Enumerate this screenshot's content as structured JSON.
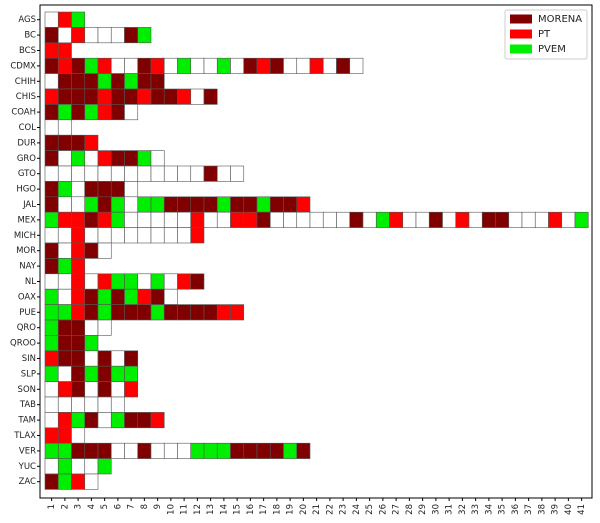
{
  "chart_data": {
    "type": "party-grid",
    "rows": [
      "AGS",
      "BC",
      "BCS",
      "CDMX",
      "CHIH",
      "CHIS",
      "COAH",
      "COL",
      "DUR",
      "GRO",
      "GTO",
      "HGO",
      "JAL",
      "MEX",
      "MICH",
      "MOR",
      "NAY",
      "NL",
      "OAX",
      "PUE",
      "QRO",
      "QROO",
      "SIN",
      "SLP",
      "SON",
      "TAB",
      "TAM",
      "TLAX",
      "VER",
      "YUC",
      "ZAC"
    ],
    "columns": [
      1,
      2,
      3,
      4,
      5,
      6,
      7,
      8,
      9,
      10,
      11,
      12,
      13,
      14,
      15,
      16,
      17,
      18,
      19,
      20,
      21,
      22,
      23,
      24,
      25,
      26,
      27,
      28,
      29,
      30,
      31,
      32,
      33,
      34,
      35,
      36,
      37,
      38,
      39,
      40,
      41
    ],
    "series": [
      {
        "name": "MORENA",
        "color": "#800000"
      },
      {
        "name": "PT",
        "color": "#ff0000"
      },
      {
        "name": "PVEM",
        "color": "#00ee00"
      }
    ],
    "legend": "upper right",
    "cells": [
      [
        null,
        "PT",
        "PVEM"
      ],
      [
        "MORENA",
        null,
        "PT",
        null,
        null,
        null,
        "MORENA",
        "PVEM"
      ],
      [
        "PT",
        "PT"
      ],
      [
        "MORENA",
        "PT",
        "MORENA",
        "PVEM",
        "PT",
        null,
        null,
        "MORENA",
        "PT",
        null,
        "PVEM",
        null,
        null,
        "PVEM",
        null,
        "MORENA",
        "PT",
        "MORENA",
        null,
        null,
        "PT",
        null,
        "MORENA",
        null
      ],
      [
        null,
        "MORENA",
        "MORENA",
        "MORENA",
        "PVEM",
        "MORENA",
        "PVEM",
        "MORENA",
        "MORENA"
      ],
      [
        "PT",
        "MORENA",
        "MORENA",
        "MORENA",
        "PT",
        "MORENA",
        "MORENA",
        "PT",
        "MORENA",
        "MORENA",
        "PT",
        null,
        "MORENA"
      ],
      [
        "MORENA",
        "PVEM",
        "MORENA",
        "PVEM",
        "PT",
        "MORENA",
        null
      ],
      [
        null,
        null
      ],
      [
        "MORENA",
        "MORENA",
        "MORENA",
        "PT"
      ],
      [
        "MORENA",
        null,
        "PVEM",
        null,
        "PT",
        "MORENA",
        "MORENA",
        "PVEM",
        null
      ],
      [
        null,
        null,
        null,
        null,
        null,
        null,
        null,
        null,
        null,
        null,
        null,
        null,
        "MORENA",
        null,
        null
      ],
      [
        "MORENA",
        "PVEM",
        null,
        "MORENA",
        "MORENA",
        "MORENA",
        null
      ],
      [
        "MORENA",
        null,
        null,
        "PVEM",
        "MORENA",
        "PVEM",
        null,
        "PVEM",
        "PVEM",
        "MORENA",
        "MORENA",
        "MORENA",
        "MORENA",
        "PVEM",
        "MORENA",
        "MORENA",
        "PVEM",
        "MORENA",
        "MORENA",
        "PT"
      ],
      [
        "PVEM",
        "PT",
        "PT",
        "MORENA",
        "PT",
        "PVEM",
        null,
        null,
        null,
        null,
        null,
        "PT",
        null,
        null,
        "PT",
        "PT",
        "MORENA",
        null,
        null,
        null,
        null,
        null,
        null,
        "MORENA",
        null,
        "PVEM",
        "PT",
        null,
        null,
        "MORENA",
        null,
        "PT",
        null,
        "MORENA",
        "MORENA",
        null,
        null,
        null,
        "PT",
        null,
        "PVEM"
      ],
      [
        null,
        null,
        "PT",
        null,
        null,
        null,
        null,
        null,
        null,
        null,
        null,
        "PT"
      ],
      [
        "MORENA",
        null,
        "PT",
        "MORENA",
        null
      ],
      [
        "MORENA",
        "PVEM",
        "PT"
      ],
      [
        null,
        null,
        "PT",
        null,
        "PT",
        "PVEM",
        "PVEM",
        null,
        "PVEM",
        null,
        "PT",
        "MORENA"
      ],
      [
        "PVEM",
        null,
        "PT",
        "MORENA",
        "PVEM",
        "MORENA",
        "PVEM",
        "PT",
        "MORENA",
        null
      ],
      [
        "PVEM",
        "PVEM",
        "PT",
        "MORENA",
        "PVEM",
        "MORENA",
        "MORENA",
        "MORENA",
        "PVEM",
        "MORENA",
        "MORENA",
        "MORENA",
        "MORENA",
        "PT",
        "PT"
      ],
      [
        "PVEM",
        "MORENA",
        "MORENA",
        null,
        null
      ],
      [
        "PVEM",
        "MORENA",
        "MORENA",
        "PVEM"
      ],
      [
        "PT",
        "MORENA",
        "MORENA",
        null,
        "MORENA",
        null,
        "MORENA"
      ],
      [
        "PVEM",
        null,
        "MORENA",
        "PVEM",
        "MORENA",
        "PVEM",
        "PVEM"
      ],
      [
        null,
        "PT",
        "MORENA",
        null,
        "MORENA",
        null,
        "PT"
      ],
      [
        null,
        null,
        null,
        null,
        null,
        null
      ],
      [
        null,
        "PT",
        "PVEM",
        "MORENA",
        null,
        "PVEM",
        "MORENA",
        "MORENA",
        "PT"
      ],
      [
        "PT",
        "PT",
        null
      ],
      [
        "PVEM",
        "PVEM",
        "MORENA",
        "MORENA",
        "MORENA",
        null,
        null,
        "MORENA",
        null,
        null,
        null,
        "PVEM",
        "PVEM",
        "PVEM",
        "MORENA",
        "MORENA",
        "MORENA",
        "MORENA",
        "PVEM",
        "MORENA"
      ],
      [
        null,
        "PVEM",
        null,
        null,
        "PVEM"
      ],
      [
        "MORENA",
        "PVEM",
        "PT",
        null
      ]
    ]
  }
}
